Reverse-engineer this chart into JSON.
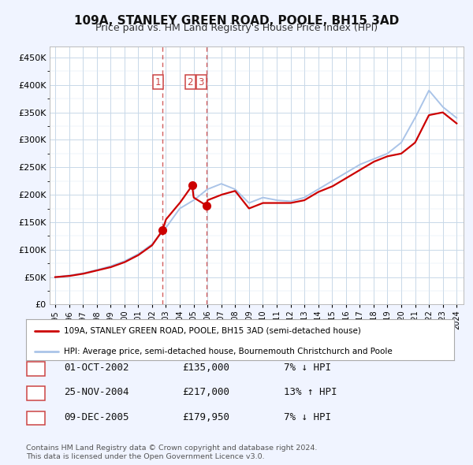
{
  "title": "109A, STANLEY GREEN ROAD, POOLE, BH15 3AD",
  "subtitle": "Price paid vs. HM Land Registry's House Price Index (HPI)",
  "title_fontsize": 11,
  "subtitle_fontsize": 9,
  "background_color": "#f0f4ff",
  "plot_background": "#ffffff",
  "years": [
    1995,
    1996,
    1997,
    1998,
    1999,
    2000,
    2001,
    2002,
    2003,
    2004,
    2005,
    2006,
    2007,
    2008,
    2009,
    2010,
    2011,
    2012,
    2013,
    2014,
    2015,
    2016,
    2017,
    2018,
    2019,
    2020,
    2021,
    2022,
    2023,
    2024
  ],
  "hpi_values": [
    50000,
    53000,
    57000,
    63000,
    70000,
    79000,
    92000,
    110000,
    140000,
    175000,
    190000,
    210000,
    220000,
    210000,
    185000,
    195000,
    190000,
    188000,
    195000,
    210000,
    225000,
    240000,
    255000,
    265000,
    275000,
    295000,
    340000,
    390000,
    360000,
    340000
  ],
  "hpi_color": "#aac4e8",
  "property_color": "#cc0000",
  "prop_years": [
    1995,
    1996,
    1997,
    1998,
    1999,
    2000,
    2001,
    2002,
    2002.75,
    2003,
    2004,
    2004.9,
    2005,
    2005.95,
    2006,
    2007,
    2008,
    2009,
    2010,
    2011,
    2012,
    2013,
    2014,
    2015,
    2016,
    2017,
    2018,
    2019,
    2020,
    2021,
    2022,
    2023,
    2024
  ],
  "prop_values": [
    50000,
    52000,
    56000,
    62000,
    68000,
    77000,
    90000,
    108000,
    135000,
    155000,
    185000,
    217000,
    195000,
    179950,
    190000,
    200000,
    207000,
    175000,
    185000,
    185000,
    185000,
    190000,
    205000,
    215000,
    230000,
    245000,
    260000,
    270000,
    275000,
    295000,
    345000,
    350000,
    330000
  ],
  "sale_points": [
    {
      "year": 2002.75,
      "price": 135000,
      "label": "1"
    },
    {
      "year": 2004.9,
      "price": 217000,
      "label": "2"
    },
    {
      "year": 2005.95,
      "price": 179950,
      "label": "3"
    }
  ],
  "sale_dates": [
    "01-OCT-2002",
    "25-NOV-2004",
    "09-DEC-2005"
  ],
  "sale_prices_str": [
    "£135,000",
    "£217,000",
    "£179,950"
  ],
  "sale_hpi_str": [
    "7% ↓ HPI",
    "13% ↑ HPI",
    "7% ↓ HPI"
  ],
  "vline_years": [
    2002.75,
    2005.95
  ],
  "vline_color": "#cc4444",
  "ylabel_ticks": [
    0,
    50000,
    100000,
    150000,
    200000,
    250000,
    300000,
    350000,
    400000,
    450000
  ],
  "ylabel_labels": [
    "£0",
    "£50K",
    "£100K",
    "£150K",
    "£200K",
    "£250K",
    "£300K",
    "£350K",
    "£400K",
    "£450K"
  ],
  "legend_line1": "109A, STANLEY GREEN ROAD, POOLE, BH15 3AD (semi-detached house)",
  "legend_line2": "HPI: Average price, semi-detached house, Bournemouth Christchurch and Poole",
  "footer1": "Contains HM Land Registry data © Crown copyright and database right 2024.",
  "footer2": "This data is licensed under the Open Government Licence v3.0.",
  "box_label_positions": [
    {
      "year": 2002.2,
      "price": 405000
    },
    {
      "year": 2004.5,
      "price": 405000
    },
    {
      "year": 2005.3,
      "price": 405000
    }
  ]
}
